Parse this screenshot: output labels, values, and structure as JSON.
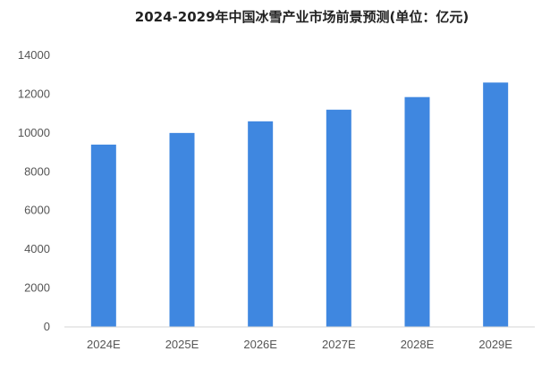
{
  "chart_data": {
    "type": "bar",
    "title": "2024-2029年中国冰雪产业市场前景预测(单位：亿元)",
    "categories": [
      "2024E",
      "2025E",
      "2026E",
      "2027E",
      "2028E",
      "2029E"
    ],
    "values": [
      9400,
      10000,
      10600,
      11200,
      11850,
      12600
    ],
    "ylim": [
      0,
      14000
    ],
    "yticks": [
      0,
      2000,
      4000,
      6000,
      8000,
      10000,
      12000,
      14000
    ],
    "grid": false,
    "bar_color": "#3f87e0",
    "axis_color": "#d6d6d6"
  }
}
